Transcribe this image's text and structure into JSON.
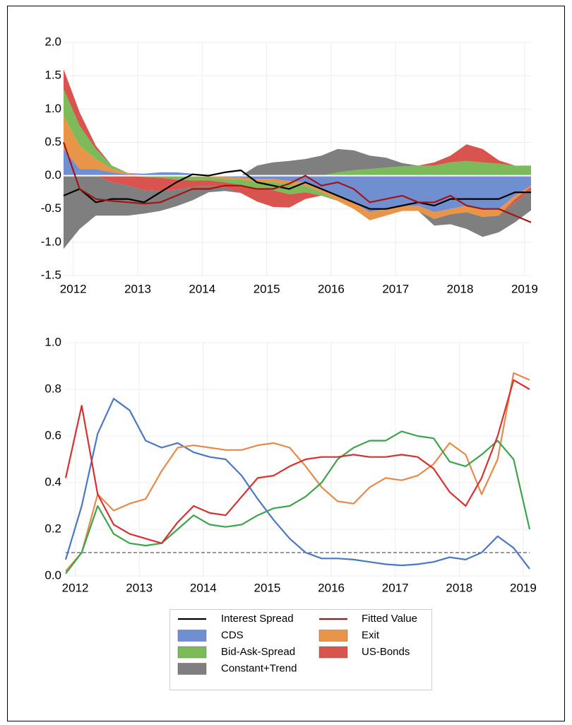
{
  "chart_data": [
    {
      "type": "stacked-area",
      "x": [
        2011.85,
        2012.1,
        2012.35,
        2012.6,
        2012.85,
        2013.1,
        2013.35,
        2013.6,
        2013.85,
        2014.1,
        2014.35,
        2014.6,
        2014.85,
        2015.1,
        2015.35,
        2015.6,
        2015.85,
        2016.1,
        2016.35,
        2016.6,
        2016.85,
        2017.1,
        2017.35,
        2017.6,
        2017.85,
        2018.1,
        2018.35,
        2018.6,
        2018.85,
        2019.1
      ],
      "xlim": [
        2011.85,
        2019.1
      ],
      "xticks": [
        2012,
        2013,
        2014,
        2015,
        2016,
        2017,
        2018,
        2019
      ],
      "ylim": [
        -1.5,
        2.0
      ],
      "yticks": [
        {
          "value": -1.5,
          "label": "-1.5"
        },
        {
          "value": -1,
          "label": "-1.0"
        },
        {
          "value": -0.5,
          "label": "-0.5"
        },
        {
          "value": 0,
          "label": "0.0"
        },
        {
          "value": 0.5,
          "label": "0.5"
        },
        {
          "value": 1,
          "label": "1.0"
        },
        {
          "value": 1.5,
          "label": "1.5"
        },
        {
          "value": 2,
          "label": "2.0"
        }
      ],
      "grid": true,
      "series": [
        {
          "name": "Interest Spread",
          "type": "line",
          "color": "#000000",
          "values": [
            -0.3,
            -0.2,
            -0.4,
            -0.35,
            -0.35,
            -0.4,
            -0.25,
            -0.1,
            0.02,
            0,
            0.05,
            0.08,
            -0.1,
            -0.15,
            -0.2,
            -0.1,
            -0.2,
            -0.3,
            -0.4,
            -0.5,
            -0.5,
            -0.45,
            -0.4,
            -0.45,
            -0.35,
            -0.35,
            -0.35,
            -0.35,
            -0.25,
            -0.25
          ]
        },
        {
          "name": "Fitted Value",
          "type": "line",
          "color": "#a31515",
          "values": [
            0.5,
            -0.2,
            -0.35,
            -0.38,
            -0.4,
            -0.42,
            -0.4,
            -0.3,
            -0.2,
            -0.2,
            -0.15,
            -0.15,
            -0.2,
            -0.2,
            -0.12,
            0,
            -0.15,
            -0.1,
            -0.2,
            -0.4,
            -0.35,
            -0.3,
            -0.4,
            -0.4,
            -0.3,
            -0.45,
            -0.5,
            -0.5,
            -0.6,
            -0.7
          ]
        },
        {
          "name": "CDS",
          "type": "area",
          "color": "#6f8fd0",
          "values": [
            0.4,
            0.1,
            0.1,
            0.05,
            0.02,
            0.03,
            0.05,
            0.05,
            0.03,
            0,
            -0.02,
            -0.03,
            -0.05,
            -0.05,
            -0.08,
            -0.1,
            -0.2,
            -0.3,
            -0.4,
            -0.55,
            -0.5,
            -0.45,
            -0.45,
            -0.55,
            -0.5,
            -0.45,
            -0.5,
            -0.5,
            -0.3,
            -0.15
          ]
        },
        {
          "name": "Exit",
          "type": "area",
          "color": "#e8954a",
          "values": [
            0.5,
            0.35,
            0.15,
            0.05,
            0.02,
            0,
            0,
            -0.01,
            -0.02,
            -0.02,
            -0.03,
            -0.03,
            -0.04,
            -0.05,
            -0.05,
            -0.05,
            -0.05,
            -0.08,
            -0.1,
            -0.12,
            -0.1,
            -0.08,
            -0.08,
            -0.1,
            -0.08,
            -0.1,
            -0.12,
            -0.1,
            -0.05,
            -0.02
          ]
        },
        {
          "name": "Bid-Ask-Spread",
          "type": "area",
          "color": "#7cba5a",
          "values": [
            0.4,
            0.3,
            0.15,
            0.05,
            0,
            -0.02,
            -0.03,
            -0.05,
            -0.05,
            -0.05,
            -0.05,
            -0.08,
            -0.1,
            -0.12,
            -0.15,
            -0.1,
            -0.05,
            0.05,
            0.08,
            0.1,
            0.12,
            0.14,
            0.15,
            0.15,
            0.2,
            0.22,
            0.2,
            0.18,
            0.15,
            0.15
          ]
        },
        {
          "name": "US-Bonds",
          "type": "area",
          "color": "#d9534f",
          "values": [
            0.3,
            0.2,
            0.05,
            -0.1,
            -0.15,
            -0.2,
            -0.2,
            -0.15,
            -0.1,
            -0.08,
            -0.08,
            -0.12,
            -0.2,
            -0.25,
            -0.2,
            -0.1,
            0,
            0,
            0,
            0,
            0,
            0,
            0,
            0.05,
            0.1,
            0.25,
            0.2,
            0.05,
            -0.05,
            -0.05
          ]
        },
        {
          "name": "Constant+Trend",
          "type": "area",
          "color": "#7f7f7f",
          "values": [
            -1.1,
            -0.8,
            -0.6,
            -0.5,
            -0.45,
            -0.35,
            -0.3,
            -0.25,
            -0.2,
            -0.1,
            -0.05,
            0,
            0.15,
            0.2,
            0.22,
            0.25,
            0.3,
            0.35,
            0.3,
            0.2,
            0.15,
            0.05,
            0,
            -0.1,
            -0.15,
            -0.25,
            -0.3,
            -0.25,
            -0.3,
            -0.3
          ]
        }
      ]
    },
    {
      "type": "line",
      "x": [
        2011.85,
        2012.1,
        2012.35,
        2012.6,
        2012.85,
        2013.1,
        2013.35,
        2013.6,
        2013.85,
        2014.1,
        2014.35,
        2014.6,
        2014.85,
        2015.1,
        2015.35,
        2015.6,
        2015.85,
        2016.1,
        2016.35,
        2016.6,
        2016.85,
        2017.1,
        2017.35,
        2017.6,
        2017.85,
        2018.1,
        2018.35,
        2018.6,
        2018.85,
        2019.1
      ],
      "xlim": [
        2011.85,
        2019.1
      ],
      "xticks": [
        2012,
        2013,
        2014,
        2015,
        2016,
        2017,
        2018,
        2019
      ],
      "ylim": [
        0,
        1
      ],
      "yticks": [
        {
          "value": 0,
          "label": "0.0"
        },
        0.2,
        0.4,
        0.6,
        0.8,
        {
          "value": 1,
          "label": "1.0"
        }
      ],
      "grid": true,
      "hline": 0.1,
      "series": [
        {
          "color": "#4a78c2",
          "values": [
            0.07,
            0.3,
            0.61,
            0.76,
            0.71,
            0.58,
            0.55,
            0.57,
            0.53,
            0.51,
            0.5,
            0.43,
            0.33,
            0.24,
            0.16,
            0.1,
            0.075,
            0.075,
            0.07,
            0.06,
            0.05,
            0.045,
            0.05,
            0.06,
            0.08,
            0.07,
            0.1,
            0.17,
            0.12,
            0.03
          ]
        },
        {
          "color": "#e8894a",
          "values": [
            0.02,
            0.1,
            0.35,
            0.28,
            0.31,
            0.33,
            0.45,
            0.55,
            0.56,
            0.55,
            0.54,
            0.54,
            0.56,
            0.57,
            0.55,
            0.47,
            0.38,
            0.32,
            0.31,
            0.38,
            0.42,
            0.41,
            0.43,
            0.48,
            0.57,
            0.52,
            0.35,
            0.5,
            0.87,
            0.84
          ]
        },
        {
          "color": "#3fa34d",
          "values": [
            0.01,
            0.1,
            0.3,
            0.18,
            0.14,
            0.13,
            0.14,
            0.2,
            0.26,
            0.22,
            0.21,
            0.22,
            0.26,
            0.29,
            0.3,
            0.34,
            0.4,
            0.5,
            0.55,
            0.58,
            0.58,
            0.62,
            0.6,
            0.59,
            0.49,
            0.47,
            0.52,
            0.58,
            0.5,
            0.2
          ]
        },
        {
          "color": "#d93030",
          "values": [
            0.42,
            0.73,
            0.35,
            0.22,
            0.18,
            0.16,
            0.14,
            0.23,
            0.3,
            0.27,
            0.26,
            0.34,
            0.42,
            0.43,
            0.47,
            0.5,
            0.51,
            0.51,
            0.52,
            0.51,
            0.51,
            0.52,
            0.51,
            0.46,
            0.36,
            0.3,
            0.42,
            0.6,
            0.84,
            0.8
          ]
        }
      ]
    }
  ]
}
